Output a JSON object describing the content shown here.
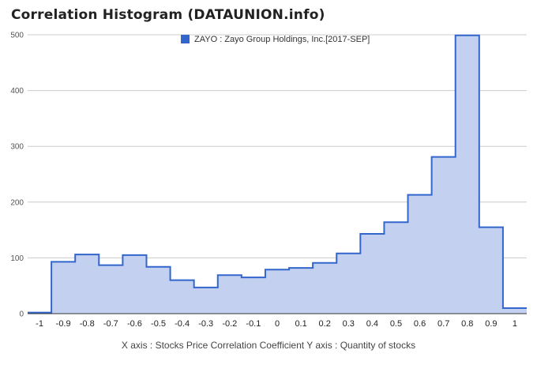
{
  "title": "Correlation Histogram (DATAUNION.info)",
  "footer": "X axis : Stocks Price Correlation Coefficient  Y axis : Quantity of stocks",
  "colors": {
    "line": "#3366cc",
    "fill": "#c3d0ef",
    "grid": "#cccccc"
  },
  "chart_data": {
    "type": "area",
    "title": "Correlation Histogram (DATAUNION.info)",
    "xlabel": "X axis : Stocks Price Correlation Coefficient",
    "ylabel": "Y axis : Quantity of stocks",
    "xlim": [
      -1.05,
      1.05
    ],
    "ylim": [
      0,
      500
    ],
    "step": true,
    "grid": true,
    "legend_position": "top",
    "y_ticks": [
      0,
      100,
      200,
      300,
      400,
      500
    ],
    "x_ticks": [
      -1,
      -0.9,
      -0.8,
      -0.7,
      -0.6,
      -0.5,
      -0.4,
      -0.3,
      -0.2,
      -0.1,
      0,
      0.1,
      0.2,
      0.3,
      0.4,
      0.5,
      0.6,
      0.7,
      0.8,
      0.9,
      1
    ],
    "series": [
      {
        "name": "ZAYO : Zayo Group Holdings, Inc.[2017-SEP]",
        "x": [
          -1,
          -0.9,
          -0.8,
          -0.7,
          -0.6,
          -0.5,
          -0.4,
          -0.3,
          -0.2,
          -0.1,
          0,
          0.1,
          0.2,
          0.3,
          0.4,
          0.5,
          0.6,
          0.7,
          0.8,
          0.9,
          1
        ],
        "values": [
          2,
          93,
          106,
          87,
          105,
          84,
          60,
          47,
          69,
          65,
          79,
          82,
          91,
          108,
          143,
          164,
          213,
          281,
          499,
          155,
          10
        ]
      }
    ]
  }
}
